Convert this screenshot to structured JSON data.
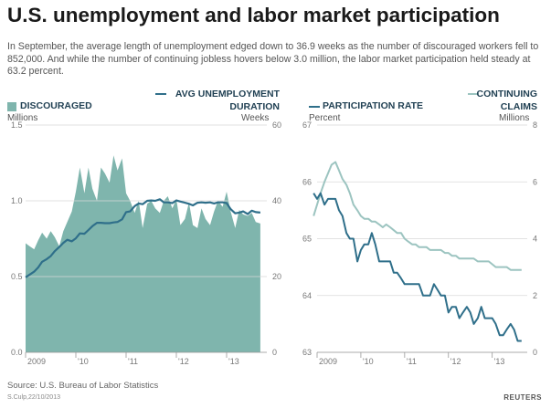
{
  "title": "U.S. unemployment and labor market participation",
  "subtitle": "In September, the average length of unemployment edged down to 36.9 weeks as the number of discouraged workers fell to 852,000. And while the number of continuing jobless hovers below 3.0 million, the labor market participation held steady at 63.2 percent.",
  "source": "Source: U.S. Bureau of Labor Statistics",
  "credit": "S.Culp,22/10/2013",
  "brand": "REUTERS",
  "colors": {
    "area": "#7fb5ad",
    "dark_line": "#2f6f8a",
    "light_line": "#9cc4c0",
    "grid": "#d9d9d9"
  },
  "chart_data": [
    {
      "type": "area",
      "x_tick_labels": [
        "2009",
        "'10",
        "'11",
        "'12",
        "'13"
      ],
      "xlim": [
        2009.0,
        2013.8
      ],
      "series": [
        {
          "name": "DISCOURAGED",
          "unit": "Millions",
          "axis": "left",
          "ylim": [
            0.0,
            1.5
          ],
          "y_tick_labels": [
            "0.0",
            "0.5",
            "1.0",
            "1.5"
          ],
          "x": [
            2009.0,
            2009.08,
            2009.17,
            2009.25,
            2009.33,
            2009.42,
            2009.5,
            2009.58,
            2009.67,
            2009.75,
            2009.83,
            2009.92,
            2010.0,
            2010.08,
            2010.17,
            2010.25,
            2010.33,
            2010.42,
            2010.5,
            2010.58,
            2010.67,
            2010.75,
            2010.83,
            2010.92,
            2011.0,
            2011.08,
            2011.17,
            2011.25,
            2011.33,
            2011.42,
            2011.5,
            2011.58,
            2011.67,
            2011.75,
            2011.83,
            2011.92,
            2012.0,
            2012.08,
            2012.17,
            2012.25,
            2012.33,
            2012.42,
            2012.5,
            2012.58,
            2012.67,
            2012.75,
            2012.83,
            2012.92,
            2013.0,
            2013.08,
            2013.17,
            2013.25,
            2013.33,
            2013.42,
            2013.5,
            2013.58,
            2013.67
          ],
          "values": [
            0.72,
            0.7,
            0.68,
            0.74,
            0.79,
            0.75,
            0.8,
            0.76,
            0.7,
            0.8,
            0.86,
            0.93,
            1.06,
            1.22,
            1.05,
            1.22,
            1.08,
            1.0,
            1.22,
            1.18,
            1.12,
            1.3,
            1.2,
            1.28,
            1.05,
            1.0,
            0.92,
            1.0,
            0.82,
            0.98,
            1.0,
            0.95,
            0.92,
            1.0,
            1.03,
            0.95,
            1.01,
            0.84,
            0.88,
            0.99,
            0.84,
            0.82,
            0.95,
            0.88,
            0.84,
            0.93,
            1.0,
            0.96,
            1.06,
            0.93,
            0.82,
            0.94,
            0.91,
            0.9,
            0.92,
            0.86,
            0.85
          ]
        },
        {
          "name": "AVG UNEMPLOYMENT DURATION",
          "unit": "Weeks",
          "axis": "right",
          "ylim": [
            0,
            60
          ],
          "y_tick_labels": [
            "0",
            "20",
            "40",
            "60"
          ],
          "x": [
            2009.0,
            2009.08,
            2009.17,
            2009.25,
            2009.33,
            2009.42,
            2009.5,
            2009.58,
            2009.67,
            2009.75,
            2009.83,
            2009.92,
            2010.0,
            2010.08,
            2010.17,
            2010.25,
            2010.33,
            2010.42,
            2010.5,
            2010.58,
            2010.67,
            2010.75,
            2010.83,
            2010.92,
            2011.0,
            2011.08,
            2011.17,
            2011.25,
            2011.33,
            2011.42,
            2011.5,
            2011.58,
            2011.67,
            2011.75,
            2011.83,
            2011.92,
            2012.0,
            2012.08,
            2012.17,
            2012.25,
            2012.33,
            2012.42,
            2012.5,
            2012.58,
            2012.67,
            2012.75,
            2012.83,
            2012.92,
            2013.0,
            2013.08,
            2013.17,
            2013.25,
            2013.33,
            2013.42,
            2013.5,
            2013.58,
            2013.67
          ],
          "values": [
            19.8,
            20.5,
            21.3,
            22.4,
            23.9,
            24.6,
            25.4,
            26.7,
            27.8,
            28.9,
            29.7,
            29.3,
            30.1,
            31.4,
            31.3,
            32.3,
            33.3,
            34.2,
            34.2,
            34.1,
            34.1,
            34.3,
            34.4,
            35.1,
            37.0,
            37.2,
            38.6,
            39.3,
            39.1,
            40.0,
            40.1,
            40.0,
            40.4,
            39.6,
            39.6,
            39.4,
            40.1,
            39.8,
            39.5,
            39.2,
            38.8,
            39.5,
            39.6,
            39.5,
            39.6,
            39.3,
            39.6,
            39.6,
            39.4,
            37.8,
            36.7,
            36.9,
            37.2,
            36.5,
            37.4,
            37.0,
            36.9
          ]
        }
      ]
    },
    {
      "type": "line",
      "x_tick_labels": [
        "2009",
        "'10",
        "'11",
        "'12",
        "'13"
      ],
      "xlim": [
        2009.0,
        2013.8
      ],
      "series": [
        {
          "name": "PARTICIPATION RATE",
          "unit": "Percent",
          "axis": "left",
          "ylim": [
            63,
            67
          ],
          "y_tick_labels": [
            "63",
            "64",
            "65",
            "66",
            "67"
          ],
          "x": [
            2008.92,
            2009.0,
            2009.08,
            2009.17,
            2009.25,
            2009.33,
            2009.42,
            2009.5,
            2009.58,
            2009.67,
            2009.75,
            2009.83,
            2009.92,
            2010.0,
            2010.08,
            2010.17,
            2010.25,
            2010.33,
            2010.42,
            2010.5,
            2010.58,
            2010.67,
            2010.75,
            2010.83,
            2010.92,
            2011.0,
            2011.08,
            2011.17,
            2011.25,
            2011.33,
            2011.42,
            2011.5,
            2011.58,
            2011.67,
            2011.75,
            2011.83,
            2011.92,
            2012.0,
            2012.08,
            2012.17,
            2012.25,
            2012.33,
            2012.42,
            2012.5,
            2012.58,
            2012.67,
            2012.75,
            2012.83,
            2012.92,
            2013.0,
            2013.08,
            2013.17,
            2013.25,
            2013.33,
            2013.42,
            2013.5,
            2013.58,
            2013.67
          ],
          "values": [
            65.8,
            65.7,
            65.8,
            65.6,
            65.7,
            65.7,
            65.7,
            65.5,
            65.4,
            65.1,
            65.0,
            65.0,
            64.6,
            64.8,
            64.9,
            64.9,
            65.1,
            64.9,
            64.6,
            64.6,
            64.6,
            64.6,
            64.4,
            64.4,
            64.3,
            64.2,
            64.2,
            64.2,
            64.2,
            64.2,
            64.0,
            64.0,
            64.0,
            64.2,
            64.1,
            64.0,
            64.0,
            63.7,
            63.8,
            63.8,
            63.6,
            63.7,
            63.8,
            63.7,
            63.5,
            63.6,
            63.8,
            63.6,
            63.6,
            63.6,
            63.5,
            63.3,
            63.3,
            63.4,
            63.5,
            63.4,
            63.2,
            63.2
          ]
        },
        {
          "name": "CONTINUING CLAIMS",
          "unit": "Millions",
          "axis": "right",
          "ylim": [
            0,
            8
          ],
          "y_tick_labels": [
            "0",
            "2",
            "4",
            "6",
            "8"
          ],
          "x": [
            2008.92,
            2009.0,
            2009.08,
            2009.17,
            2009.25,
            2009.33,
            2009.42,
            2009.5,
            2009.58,
            2009.67,
            2009.75,
            2009.83,
            2009.92,
            2010.0,
            2010.08,
            2010.17,
            2010.25,
            2010.33,
            2010.42,
            2010.5,
            2010.58,
            2010.67,
            2010.75,
            2010.83,
            2010.92,
            2011.0,
            2011.08,
            2011.17,
            2011.25,
            2011.33,
            2011.42,
            2011.5,
            2011.58,
            2011.67,
            2011.75,
            2011.83,
            2011.92,
            2012.0,
            2012.08,
            2012.17,
            2012.25,
            2012.33,
            2012.42,
            2012.5,
            2012.58,
            2012.67,
            2012.75,
            2012.83,
            2012.92,
            2013.0,
            2013.08,
            2013.17,
            2013.25,
            2013.33,
            2013.42,
            2013.5,
            2013.58,
            2013.67
          ],
          "values": [
            4.8,
            5.2,
            5.6,
            6.0,
            6.3,
            6.6,
            6.7,
            6.4,
            6.1,
            5.9,
            5.6,
            5.2,
            5.0,
            4.8,
            4.7,
            4.7,
            4.6,
            4.6,
            4.5,
            4.4,
            4.5,
            4.4,
            4.3,
            4.2,
            4.2,
            4.0,
            3.9,
            3.8,
            3.8,
            3.7,
            3.7,
            3.7,
            3.6,
            3.6,
            3.6,
            3.6,
            3.5,
            3.5,
            3.4,
            3.4,
            3.3,
            3.3,
            3.3,
            3.3,
            3.3,
            3.2,
            3.2,
            3.2,
            3.2,
            3.1,
            3.0,
            3.0,
            3.0,
            3.0,
            2.9,
            2.9,
            2.9,
            2.9
          ]
        }
      ]
    }
  ]
}
